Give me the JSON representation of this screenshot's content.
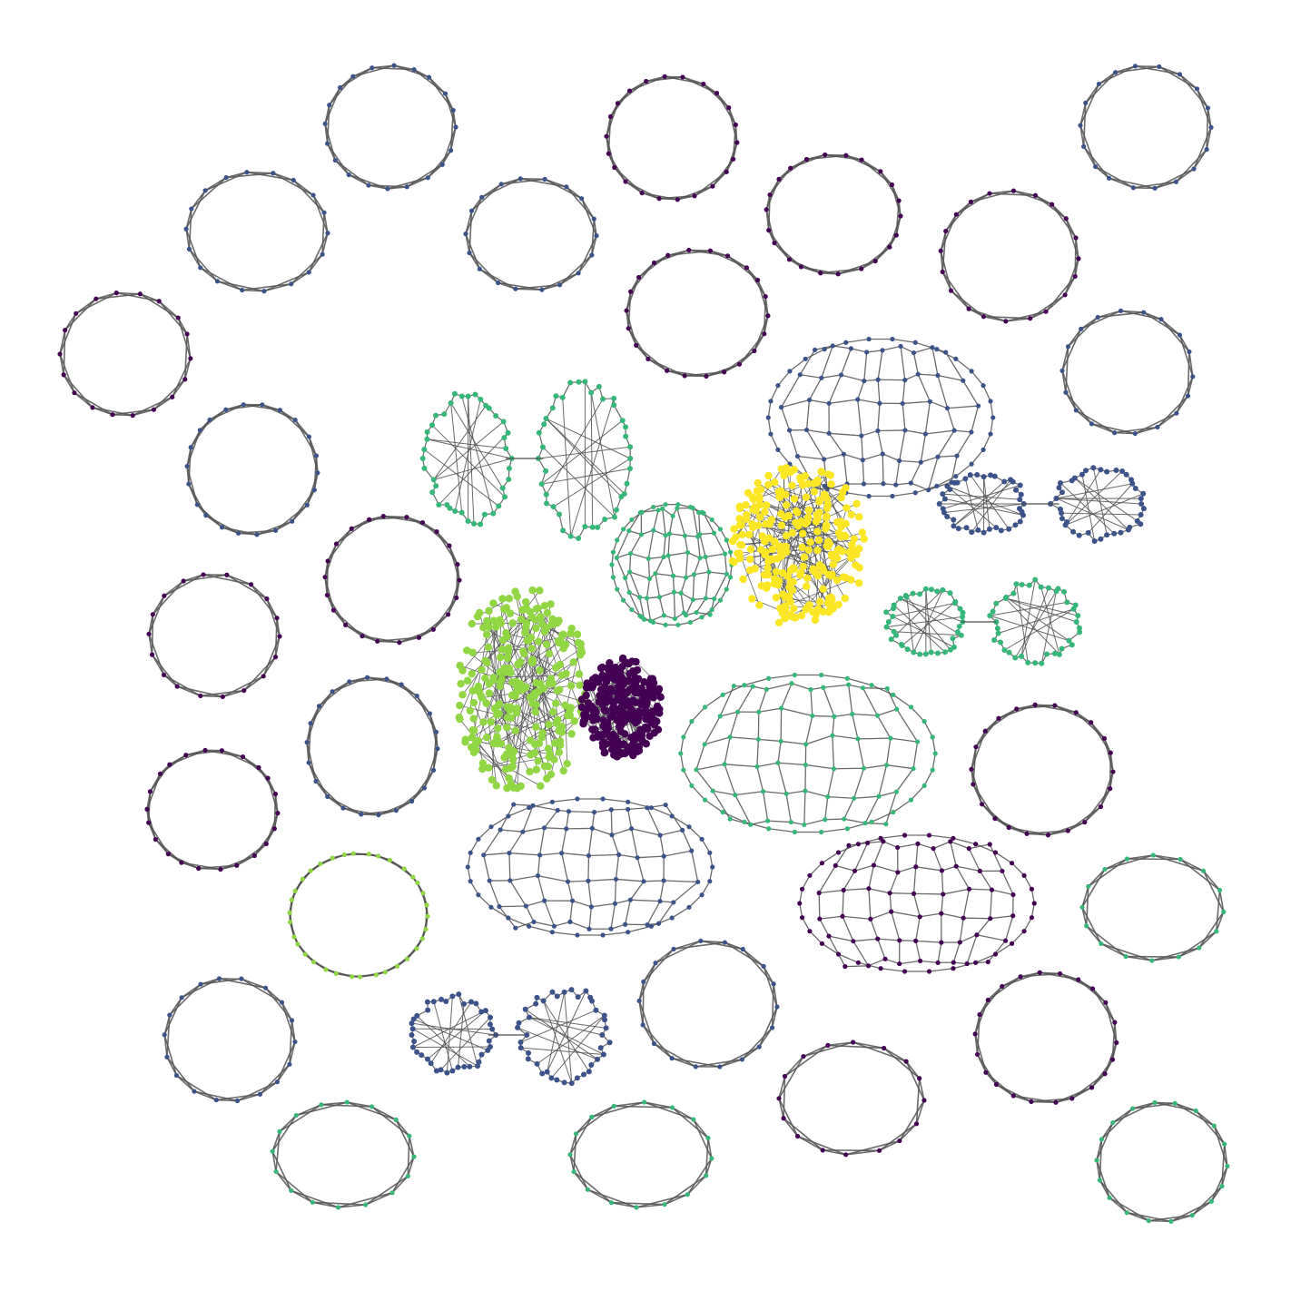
{
  "figure": {
    "background": "#ffffff",
    "edge_color": "#505050",
    "colormap": "viridis"
  },
  "palette": {
    "purple": "#440154",
    "indigo": "#3b528b",
    "blue": "#31688e",
    "teal": "#21918c",
    "green": "#35b779",
    "lime": "#90d743",
    "yellow": "#fde725"
  },
  "components": [
    {
      "kind": "ring",
      "color": "indigo"
    },
    {
      "kind": "ring",
      "color": "purple"
    },
    {
      "kind": "ring",
      "color": "indigo"
    },
    {
      "kind": "ring",
      "color": "indigo"
    },
    {
      "kind": "ring",
      "color": "indigo"
    },
    {
      "kind": "ring",
      "color": "purple"
    },
    {
      "kind": "ring",
      "color": "purple"
    },
    {
      "kind": "ring",
      "color": "purple"
    },
    {
      "kind": "ring",
      "color": "indigo"
    },
    {
      "kind": "ring",
      "color": "purple"
    },
    {
      "kind": "ring",
      "color": "indigo"
    },
    {
      "kind": "ring",
      "color": "purple"
    },
    {
      "kind": "ring",
      "color": "purple"
    },
    {
      "kind": "ring",
      "color": "indigo"
    },
    {
      "kind": "ring",
      "color": "purple"
    },
    {
      "kind": "ring",
      "color": "purple"
    },
    {
      "kind": "ring",
      "color": "purple"
    },
    {
      "kind": "ring",
      "color": "lime"
    },
    {
      "kind": "ring",
      "color": "green"
    },
    {
      "kind": "ring",
      "color": "indigo"
    },
    {
      "kind": "ring",
      "color": "indigo"
    },
    {
      "kind": "ring",
      "color": "purple"
    },
    {
      "kind": "ring",
      "color": "green"
    },
    {
      "kind": "ring",
      "color": "green"
    },
    {
      "kind": "ring",
      "color": "green"
    },
    {
      "kind": "ring",
      "color": "indigo"
    },
    {
      "kind": "dumbbell",
      "color": "indigo"
    },
    {
      "kind": "dumbbell",
      "color": "indigo"
    },
    {
      "kind": "dumbbell",
      "color": "green"
    },
    {
      "kind": "dumbbell",
      "color": "green"
    },
    {
      "kind": "mesh",
      "color": "indigo"
    },
    {
      "kind": "mesh",
      "color": "green"
    },
    {
      "kind": "mesh",
      "color": "indigo"
    },
    {
      "kind": "mesh",
      "color": "purple"
    },
    {
      "kind": "mesh",
      "color": "green"
    },
    {
      "kind": "cluster",
      "color": "yellow"
    },
    {
      "kind": "cluster",
      "color": "lime"
    },
    {
      "kind": "cluster",
      "color": "purple"
    },
    {
      "kind": "cluster",
      "color": "teal"
    }
  ]
}
